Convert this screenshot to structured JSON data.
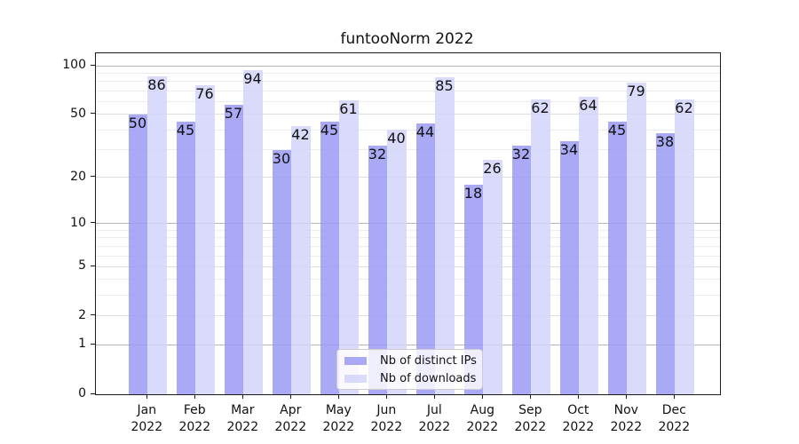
{
  "title": "funtooNorm 2022",
  "chart_data": {
    "type": "bar",
    "title": "funtooNorm 2022",
    "year": "2022",
    "months": [
      "Jan",
      "Feb",
      "Mar",
      "Apr",
      "May",
      "Jun",
      "Jul",
      "Aug",
      "Sep",
      "Oct",
      "Nov",
      "Dec"
    ],
    "categories": [
      "Jan 2022",
      "Feb 2022",
      "Mar 2022",
      "Apr 2022",
      "May 2022",
      "Jun 2022",
      "Jul 2022",
      "Aug 2022",
      "Sep 2022",
      "Oct 2022",
      "Nov 2022",
      "Dec 2022"
    ],
    "series": [
      {
        "name": "Nb of distinct IPs",
        "key": "distinct-ips",
        "color": "rgba(154,154,243,0.85)",
        "values": [
          50,
          45,
          57,
          30,
          45,
          32,
          44,
          18,
          32,
          34,
          45,
          38
        ]
      },
      {
        "name": "Nb of downloads",
        "key": "downloads",
        "color": "rgba(211,211,250,0.85)",
        "values": [
          86,
          76,
          94,
          42,
          61,
          40,
          85,
          26,
          62,
          64,
          79,
          62
        ]
      }
    ],
    "yscale": "log1p",
    "ylim": [
      0,
      119.3
    ],
    "y_ticks": [
      0,
      1,
      2,
      5,
      10,
      20,
      50,
      100
    ],
    "y_minor_ticks": [
      3,
      4,
      6,
      7,
      8,
      9,
      30,
      40,
      60,
      70,
      80,
      90
    ],
    "grid": true,
    "legend_position": "lower center"
  },
  "colors": {
    "bar_distinct_ips": "rgba(154,154,243,0.85)",
    "bar_downloads": "rgba(211,211,250,0.85)",
    "grid_decade": "#b5b5b5",
    "grid_labeled": "#dfdfdf",
    "grid_minor": "#ececec",
    "spine": "#1a1a1a",
    "legend_border": "#cccccc"
  }
}
